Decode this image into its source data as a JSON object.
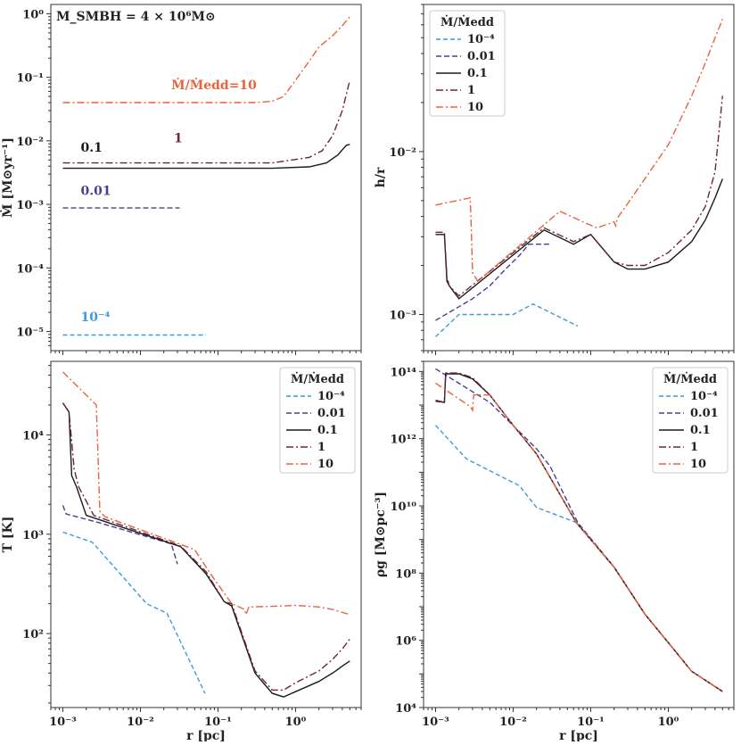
{
  "chart_data": [
    {
      "type": "line",
      "panel": "top-left",
      "ylabel": "Ṁ [M⊙yr⁻¹]",
      "xlabel": "",
      "xscale": "log",
      "yscale": "log",
      "xlim": [
        0.0007,
        7
      ],
      "ylim": [
        5e-06,
        1.4
      ],
      "xticks": [],
      "xtick_labels": [],
      "yticks": [
        1e-05,
        0.0001,
        0.001,
        0.01,
        0.1,
        1
      ],
      "ytick_labels": [
        "10⁻⁵",
        "10⁻⁴",
        "10⁻³",
        "10⁻²",
        "10⁻¹",
        "10⁰"
      ],
      "corner_label": "M_SMBH = 4 × 10⁶M⊙",
      "annotations": [
        {
          "text": "Ṁ/Ṁedd=10",
          "x": 0.025,
          "y": 0.065,
          "color": "#e8643c"
        },
        {
          "text": "1",
          "x": 0.027,
          "y": 0.0095,
          "color": "#6e2240"
        },
        {
          "text": "0.1",
          "x": 0.0017,
          "y": 0.0068,
          "color": "#1a1a1a"
        },
        {
          "text": "0.01",
          "x": 0.0017,
          "y": 0.0014,
          "color": "#4b3f8f"
        },
        {
          "text": "10⁻⁴",
          "x": 0.0017,
          "y": 1.45e-05,
          "color": "#3f9ad8"
        }
      ],
      "legend": null,
      "series": [
        {
          "name": "10⁻⁴",
          "x": [
            0.001,
            0.07
          ],
          "y": [
            8.8e-06,
            8.8e-06
          ]
        },
        {
          "name": "0.01",
          "x": [
            0.001,
            0.032
          ],
          "y": [
            0.00088,
            0.00088
          ]
        },
        {
          "name": "0.1",
          "x": [
            0.001,
            0.5,
            1.5,
            2.5,
            3.5,
            4.5,
            5
          ],
          "y": [
            0.0037,
            0.0037,
            0.0039,
            0.0045,
            0.006,
            0.0085,
            0.0088
          ]
        },
        {
          "name": "1",
          "x": [
            0.001,
            0.5,
            1.5,
            2.2,
            3,
            4,
            5
          ],
          "y": [
            0.0045,
            0.0045,
            0.0055,
            0.007,
            0.012,
            0.03,
            0.09
          ]
        },
        {
          "name": "10",
          "x": [
            0.001,
            0.3,
            0.5,
            0.7,
            1,
            1.5,
            2,
            3,
            4,
            5
          ],
          "y": [
            0.04,
            0.04,
            0.042,
            0.05,
            0.09,
            0.18,
            0.3,
            0.45,
            0.65,
            0.9
          ]
        }
      ]
    },
    {
      "type": "line",
      "panel": "top-right",
      "ylabel": "h/r",
      "xlabel": "",
      "xscale": "log",
      "yscale": "log",
      "xlim": [
        0.0007,
        7
      ],
      "ylim": [
        0.0006,
        0.08
      ],
      "xticks": [],
      "xtick_labels": [],
      "yticks": [
        0.001,
        0.01
      ],
      "ytick_labels": [
        "10⁻³",
        "10⁻²"
      ],
      "legend": {
        "title": "Ṁ/Ṁedd",
        "position": "top-left"
      },
      "series": [
        {
          "name": "10⁻⁴",
          "x": [
            0.001,
            0.002,
            0.01,
            0.018,
            0.068
          ],
          "y": [
            0.00073,
            0.001,
            0.001,
            0.00116,
            0.00085
          ]
        },
        {
          "name": "0.01",
          "x": [
            0.001,
            0.003,
            0.005,
            0.008,
            0.012,
            0.016,
            0.02,
            0.03
          ],
          "y": [
            0.00092,
            0.00125,
            0.0015,
            0.0019,
            0.0023,
            0.0027,
            0.0027,
            0.0027
          ]
        },
        {
          "name": "0.1",
          "x": [
            0.001,
            0.0013,
            0.0014,
            0.0015,
            0.002,
            0.025,
            0.06,
            0.1,
            0.2,
            0.3,
            0.5,
            1,
            2,
            3,
            4,
            5
          ],
          "y": [
            0.0031,
            0.0031,
            0.0016,
            0.0015,
            0.00125,
            0.0033,
            0.0027,
            0.0031,
            0.0021,
            0.0019,
            0.0019,
            0.0021,
            0.0028,
            0.0038,
            0.0052,
            0.0068
          ]
        },
        {
          "name": "1",
          "x": [
            0.001,
            0.0013,
            0.0014,
            0.0015,
            0.002,
            0.025,
            0.06,
            0.1,
            0.2,
            0.3,
            0.5,
            1,
            2,
            3,
            4,
            5
          ],
          "y": [
            0.0032,
            0.0032,
            0.0017,
            0.0015,
            0.0013,
            0.0034,
            0.0028,
            0.0031,
            0.0021,
            0.002,
            0.002,
            0.0024,
            0.0033,
            0.0046,
            0.0075,
            0.022
          ]
        },
        {
          "name": "10",
          "x": [
            0.001,
            0.0028,
            0.003,
            0.0035,
            0.04,
            0.08,
            0.12,
            0.2,
            0.21,
            0.22,
            0.3,
            1,
            2,
            3,
            4,
            5
          ],
          "y": [
            0.0047,
            0.0052,
            0.0018,
            0.0016,
            0.0043,
            0.0037,
            0.0034,
            0.0037,
            0.0035,
            0.0039,
            0.0048,
            0.011,
            0.022,
            0.035,
            0.05,
            0.065
          ]
        }
      ]
    },
    {
      "type": "line",
      "panel": "bottom-left",
      "ylabel": "T [K]",
      "xlabel": "r [pc]",
      "xscale": "log",
      "yscale": "log",
      "xlim": [
        0.0007,
        7
      ],
      "ylim": [
        18,
        55000
      ],
      "xticks": [
        0.001,
        0.01,
        0.1,
        1
      ],
      "xtick_labels": [
        "10⁻³",
        "10⁻²",
        "10⁻¹",
        "10⁰"
      ],
      "yticks": [
        100,
        1000,
        10000
      ],
      "ytick_labels": [
        "10²",
        "10³",
        "10⁴"
      ],
      "legend": {
        "title": "Ṁ/Ṁedd",
        "position": "top-right"
      },
      "series": [
        {
          "name": "10⁻⁴",
          "x": [
            0.001,
            0.0024,
            0.012,
            0.022,
            0.068
          ],
          "y": [
            1050,
            830,
            200,
            160,
            25
          ]
        },
        {
          "name": "0.01",
          "x": [
            0.001,
            0.0011,
            0.003,
            0.025,
            0.03
          ],
          "y": [
            1950,
            1600,
            1300,
            800,
            500
          ]
        },
        {
          "name": "0.1",
          "x": [
            0.001,
            0.0012,
            0.0013,
            0.0015,
            0.002,
            0.033,
            0.07,
            0.12,
            0.15,
            0.3,
            0.5,
            0.7,
            1,
            2,
            3,
            4,
            5
          ],
          "y": [
            21000,
            17000,
            3900,
            3000,
            1550,
            750,
            400,
            210,
            190,
            40,
            25,
            23,
            26,
            33,
            40,
            47,
            53
          ]
        },
        {
          "name": "1",
          "x": [
            0.001,
            0.0012,
            0.0014,
            0.0016,
            0.0025,
            0.033,
            0.07,
            0.12,
            0.15,
            0.3,
            0.5,
            0.7,
            1,
            2,
            3,
            4,
            5
          ],
          "y": [
            21000,
            17000,
            4500,
            3000,
            1550,
            760,
            420,
            210,
            200,
            42,
            27,
            27,
            32,
            42,
            55,
            70,
            88
          ]
        },
        {
          "name": "10",
          "x": [
            0.001,
            0.0027,
            0.003,
            0.0035,
            0.05,
            0.08,
            0.15,
            0.22,
            0.23,
            0.25,
            0.5,
            1,
            2,
            3,
            5
          ],
          "y": [
            43000,
            20000,
            1700,
            1500,
            700,
            400,
            200,
            175,
            155,
            185,
            188,
            192,
            185,
            175,
            155
          ]
        }
      ]
    },
    {
      "type": "line",
      "panel": "bottom-right",
      "ylabel": "ρg [M⊙pc⁻³]",
      "xlabel": "r [pc]",
      "xscale": "log",
      "yscale": "log",
      "xlim": [
        0.0007,
        7
      ],
      "ylim": [
        10000,
        200000000000000
      ],
      "xticks": [
        0.001,
        0.01,
        0.1,
        1
      ],
      "xtick_labels": [
        "10⁻³",
        "10⁻²",
        "10⁻¹",
        "10⁰"
      ],
      "yticks": [
        10000,
        1000000,
        100000000,
        10000000000,
        1000000000000,
        100000000000000
      ],
      "ytick_labels": [
        "10⁴",
        "10⁶",
        "10⁸",
        "10¹⁰",
        "10¹²",
        "10¹⁴"
      ],
      "legend": {
        "title": "Ṁ/Ṁedd",
        "position": "top-right"
      },
      "series": [
        {
          "name": "10⁻⁴",
          "x": [
            0.001,
            0.0025,
            0.012,
            0.02,
            0.065,
            0.2,
            0.5,
            1,
            2,
            5
          ],
          "y": [
            2500000000000,
            250000000000,
            40000000000,
            9000000000,
            3200000000,
            150000000,
            6000000,
            850000,
            120000,
            30000
          ]
        },
        {
          "name": "0.01",
          "x": [
            0.001,
            0.005,
            0.02,
            0.03,
            0.068,
            0.2,
            0.5,
            1,
            2,
            5
          ],
          "y": [
            120000000000000,
            12000000000000,
            500000000000,
            150000000000,
            3200000000,
            150000000,
            6000000,
            850000,
            120000,
            30000
          ]
        },
        {
          "name": "0.1",
          "x": [
            0.001,
            0.0013,
            0.00135,
            0.002,
            0.003,
            0.005,
            0.01,
            0.02,
            0.065,
            0.2,
            0.5,
            1,
            2,
            5
          ],
          "y": [
            13000000000000,
            12000000000000,
            85000000000000,
            85000000000000,
            60000000000000,
            20000000000000,
            2500000000000,
            350000000000,
            3200000000,
            150000000,
            6000000,
            850000,
            120000,
            30000
          ]
        },
        {
          "name": "1",
          "x": [
            0.001,
            0.0013,
            0.00135,
            0.002,
            0.003,
            0.005,
            0.01,
            0.02,
            0.065,
            0.2,
            0.5,
            1,
            2,
            5
          ],
          "y": [
            14000000000000,
            12000000000000,
            90000000000000,
            90000000000000,
            65000000000000,
            20000000000000,
            2500000000000,
            350000000000,
            3200000000,
            150000000,
            6000000,
            850000,
            120000,
            30000
          ]
        },
        {
          "name": "10",
          "x": [
            0.001,
            0.0028,
            0.003,
            0.0031,
            0.005,
            0.01,
            0.02,
            0.065,
            0.2,
            0.5,
            1,
            2,
            5
          ],
          "y": [
            45000000000000,
            9000000000000,
            7000000000000,
            20000000000000,
            20000000000000,
            2500000000000,
            350000000000,
            3200000000,
            150000000,
            6000000,
            850000,
            120000,
            30000
          ]
        }
      ]
    }
  ],
  "series_styles": [
    {
      "name": "10⁻⁴",
      "color": "#3f9ad8",
      "dash": "5,3"
    },
    {
      "name": "0.01",
      "color": "#4b3f8f",
      "dash": "6,3"
    },
    {
      "name": "0.1",
      "color": "#1a1a1a",
      "dash": ""
    },
    {
      "name": "1",
      "color": "#6e2240",
      "dash": "8,3,2,3"
    },
    {
      "name": "10",
      "color": "#e8643c",
      "dash": "8,3,2,3"
    }
  ]
}
